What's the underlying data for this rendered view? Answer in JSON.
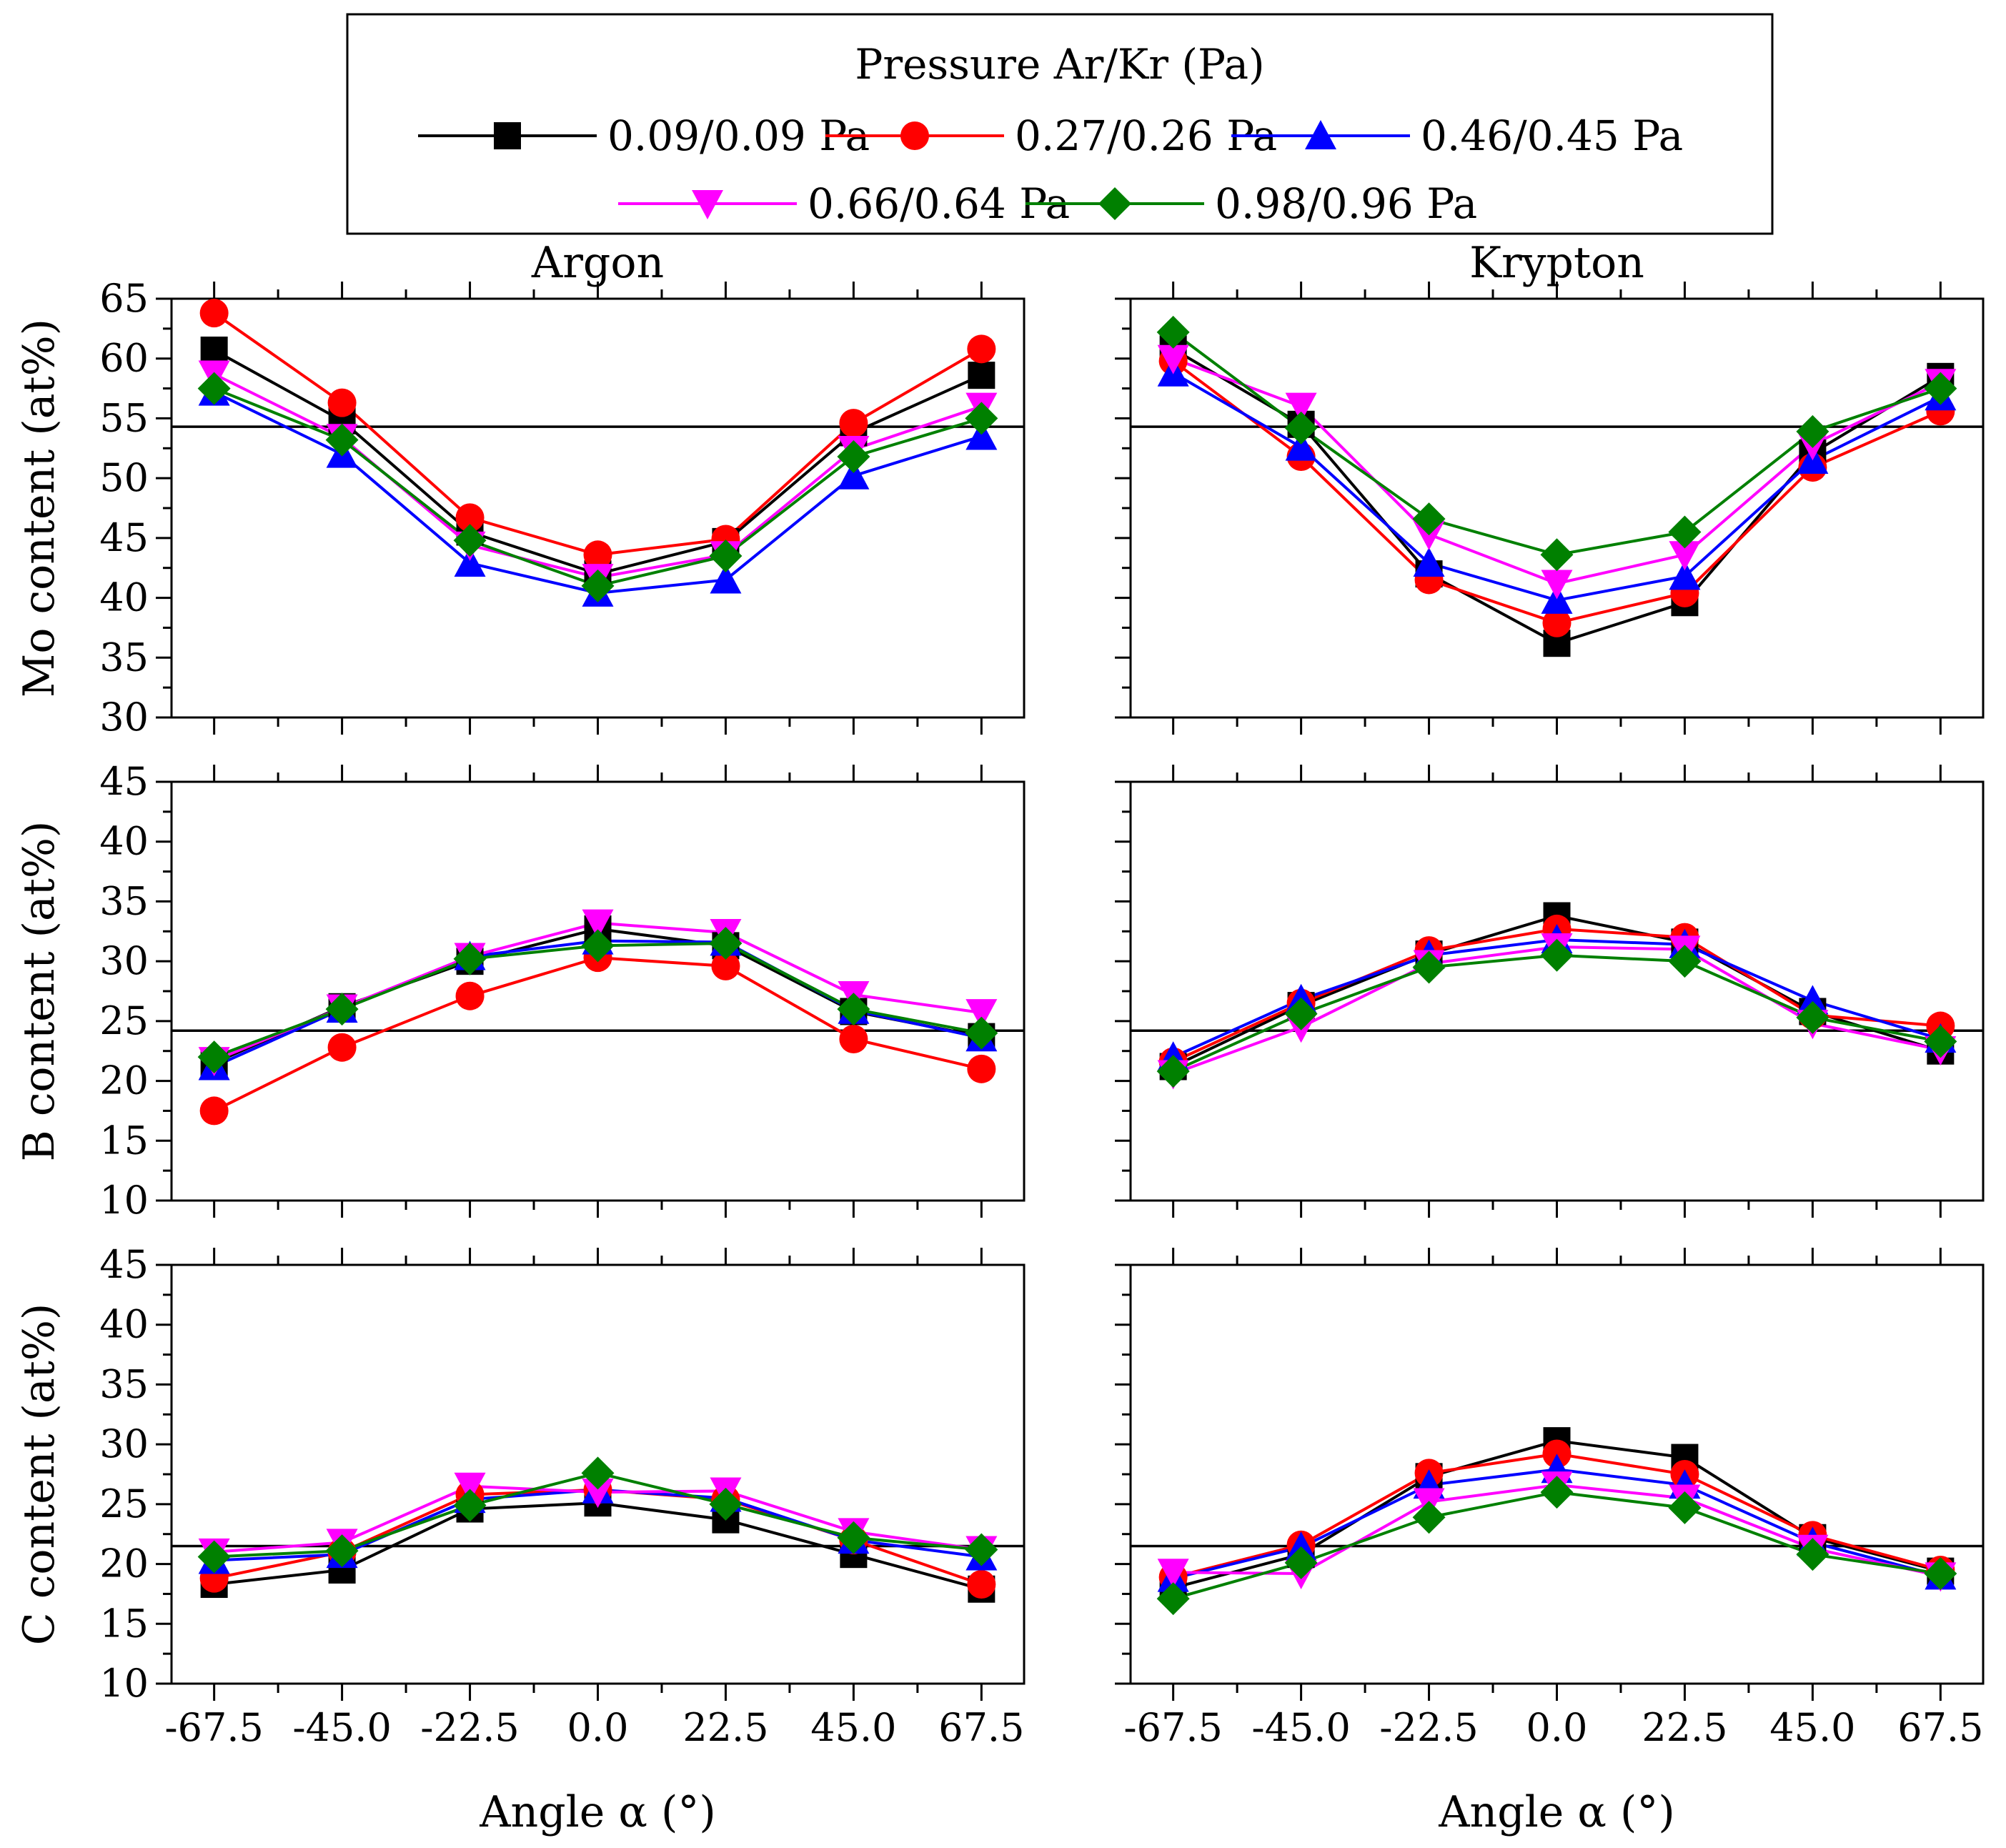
{
  "chart_data": {
    "type": "line",
    "legend": {
      "title": "Pressure Ar/Kr (Pa)",
      "placement": "top-center"
    },
    "series_names": [
      "0.09/0.09 Pa",
      "0.27/0.26 Pa",
      "0.46/0.45 Pa",
      "0.66/0.64 Pa",
      "0.98/0.96 Pa"
    ],
    "series_colors": [
      "#000000",
      "#ff0000",
      "#0000ff",
      "#ff00ff",
      "#008000"
    ],
    "series_markers": [
      "square",
      "circle",
      "triangle-up",
      "triangle-down",
      "diamond"
    ],
    "x": [
      -67.5,
      -45.0,
      -22.5,
      0.0,
      22.5,
      45.0,
      67.5
    ],
    "x_tick_labels": [
      "-67.5",
      "-45.0",
      "-22.5",
      "0.0",
      "22.5",
      "45.0",
      "67.5"
    ],
    "xlabel": "Angle α (°)",
    "xlim": [
      -75,
      75
    ],
    "column_titles": [
      "Argon",
      "Krypton"
    ],
    "rows": [
      {
        "ylabel": "Mo content (at%)",
        "ylim": [
          30,
          65
        ],
        "yticks": [
          30,
          35,
          40,
          45,
          50,
          55,
          60,
          65
        ],
        "reference_line": 54.3,
        "argon": [
          [
            60.7,
            54.8,
            45.5,
            42.0,
            44.7,
            53.8,
            58.6
          ],
          [
            63.8,
            56.3,
            46.7,
            43.6,
            44.9,
            54.6,
            60.8
          ],
          [
            57.2,
            52.0,
            42.9,
            40.4,
            41.5,
            50.2,
            53.5
          ],
          [
            58.7,
            53.4,
            44.4,
            41.7,
            43.6,
            52.4,
            56.0
          ],
          [
            57.5,
            53.2,
            44.8,
            41.0,
            43.5,
            51.8,
            55.0
          ]
        ],
        "krypton": [
          [
            60.8,
            54.5,
            42.0,
            36.2,
            39.6,
            52.1,
            58.5
          ],
          [
            59.8,
            51.8,
            41.5,
            37.9,
            40.4,
            50.9,
            55.6
          ],
          [
            58.8,
            52.6,
            42.9,
            39.8,
            41.8,
            51.5,
            56.8
          ],
          [
            60.0,
            56.0,
            45.3,
            41.2,
            43.6,
            52.8,
            58.0
          ],
          [
            62.2,
            54.2,
            46.6,
            43.6,
            45.5,
            53.9,
            57.5
          ]
        ]
      },
      {
        "ylabel": "B content (at%)",
        "ylim": [
          10,
          45
        ],
        "yticks": [
          10,
          15,
          20,
          25,
          30,
          35,
          40,
          45
        ],
        "reference_line": 24.2,
        "argon": [
          [
            21.5,
            26.2,
            30.0,
            32.7,
            31.3,
            25.8,
            23.7
          ],
          [
            17.5,
            22.8,
            27.1,
            30.3,
            29.6,
            23.5,
            21.0
          ],
          [
            21.2,
            26.0,
            30.4,
            31.7,
            31.6,
            25.9,
            23.6
          ],
          [
            21.7,
            26.1,
            30.4,
            33.2,
            32.4,
            27.2,
            25.7
          ],
          [
            22.0,
            26.0,
            30.2,
            31.3,
            31.5,
            26.0,
            24.0
          ]
        ],
        "krypton": [
          [
            21.2,
            26.3,
            30.6,
            33.8,
            31.6,
            25.8,
            22.5
          ],
          [
            21.6,
            26.5,
            30.9,
            32.7,
            32.0,
            25.5,
            24.6
          ],
          [
            22.0,
            26.8,
            30.5,
            31.8,
            31.4,
            26.7,
            23.5
          ],
          [
            20.6,
            24.5,
            29.8,
            31.2,
            31.0,
            24.8,
            22.6
          ],
          [
            20.8,
            25.6,
            29.5,
            30.5,
            30.0,
            25.3,
            23.3
          ]
        ]
      },
      {
        "ylabel": "C content (at%)",
        "ylim": [
          10,
          45
        ],
        "yticks": [
          10,
          15,
          20,
          25,
          30,
          35,
          40,
          45
        ],
        "reference_line": 21.5,
        "argon": [
          [
            18.3,
            19.5,
            24.6,
            25.1,
            23.7,
            20.8,
            17.9
          ],
          [
            18.8,
            21.0,
            25.8,
            26.2,
            25.4,
            22.0,
            18.3
          ],
          [
            20.3,
            20.8,
            25.4,
            26.2,
            25.5,
            22.0,
            20.6
          ],
          [
            21.0,
            21.8,
            26.5,
            26.0,
            26.1,
            22.7,
            21.2
          ],
          [
            20.6,
            21.1,
            24.9,
            27.6,
            25.0,
            22.2,
            21.2
          ]
        ],
        "krypton": [
          [
            18.0,
            20.8,
            27.3,
            30.3,
            28.9,
            22.2,
            19.4
          ],
          [
            18.9,
            21.6,
            27.6,
            29.2,
            27.5,
            22.4,
            19.5
          ],
          [
            18.8,
            21.4,
            26.6,
            27.9,
            26.6,
            21.8,
            19.0
          ],
          [
            19.3,
            19.2,
            25.2,
            26.6,
            25.5,
            21.3,
            19.0
          ],
          [
            17.1,
            20.1,
            23.9,
            26.0,
            24.7,
            20.8,
            19.2
          ]
        ]
      }
    ]
  }
}
